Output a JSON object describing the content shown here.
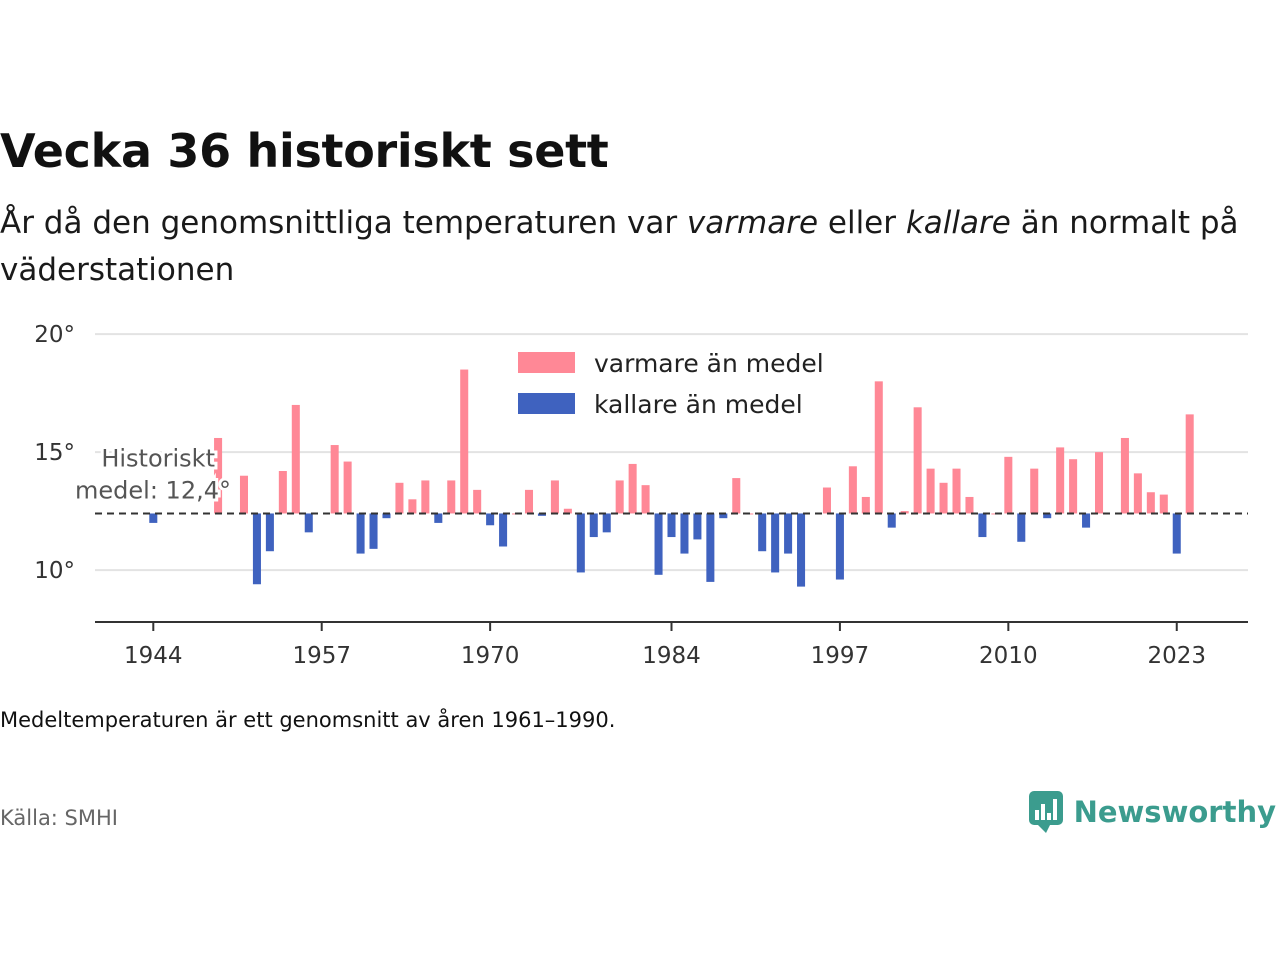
{
  "header": {
    "title": "Vecka 36 historiskt sett",
    "subtitle_parts": [
      "År då den genomsnittliga temperaturen var ",
      "varmare",
      " eller ",
      "kallare",
      " än normalt på väderstationen"
    ]
  },
  "footer": {
    "note": "Medeltemperaturen är ett genomsnitt av åren 1961–1990.",
    "source": "Källa: SMHI",
    "brand": "Newsworthy"
  },
  "chart_data": {
    "type": "bar",
    "baseline": 12.4,
    "baseline_label": [
      "Historiskt",
      "medel: 12,4°"
    ],
    "ylim": [
      7.8,
      20.6
    ],
    "yticks": [
      10,
      15,
      20
    ],
    "ytick_labels": [
      "10°",
      "15°",
      "20°"
    ],
    "xlim": [
      1939.5,
      2028.5
    ],
    "xticks": [
      1944,
      1957,
      1970,
      1984,
      1997,
      2010,
      2023
    ],
    "xtick_labels": [
      "1944",
      "1957",
      "1970",
      "1984",
      "1997",
      "2010",
      "2023"
    ],
    "grid": true,
    "legend": [
      {
        "key": "warm",
        "label": "varmare än medel",
        "color": "#ff8896"
      },
      {
        "key": "cold",
        "label": "kallare än medel",
        "color": "#3f62bf"
      }
    ],
    "colors": {
      "warm": "#ff8896",
      "cold": "#3f62bf",
      "baseline": "#333333"
    },
    "series": [
      {
        "x": 1944,
        "value": 12.0
      },
      {
        "x": 1949,
        "value": 15.6
      },
      {
        "x": 1951,
        "value": 14.0
      },
      {
        "x": 1952,
        "value": 9.4
      },
      {
        "x": 1953,
        "value": 10.8
      },
      {
        "x": 1954,
        "value": 14.2
      },
      {
        "x": 1955,
        "value": 17.0
      },
      {
        "x": 1956,
        "value": 11.6
      },
      {
        "x": 1958,
        "value": 15.3
      },
      {
        "x": 1959,
        "value": 14.6
      },
      {
        "x": 1960,
        "value": 10.7
      },
      {
        "x": 1961,
        "value": 10.9
      },
      {
        "x": 1962,
        "value": 12.2
      },
      {
        "x": 1963,
        "value": 13.7
      },
      {
        "x": 1964,
        "value": 13.0
      },
      {
        "x": 1965,
        "value": 13.8
      },
      {
        "x": 1966,
        "value": 12.0
      },
      {
        "x": 1967,
        "value": 13.8
      },
      {
        "x": 1968,
        "value": 18.5
      },
      {
        "x": 1969,
        "value": 13.4
      },
      {
        "x": 1970,
        "value": 11.9
      },
      {
        "x": 1971,
        "value": 11.0
      },
      {
        "x": 1972,
        "value": 12.4
      },
      {
        "x": 1973,
        "value": 13.4
      },
      {
        "x": 1974,
        "value": 12.3
      },
      {
        "x": 1975,
        "value": 13.8
      },
      {
        "x": 1976,
        "value": 12.6
      },
      {
        "x": 1977,
        "value": 9.9
      },
      {
        "x": 1978,
        "value": 11.4
      },
      {
        "x": 1979,
        "value": 11.6
      },
      {
        "x": 1980,
        "value": 13.8
      },
      {
        "x": 1981,
        "value": 14.5
      },
      {
        "x": 1982,
        "value": 13.6
      },
      {
        "x": 1983,
        "value": 9.8
      },
      {
        "x": 1984,
        "value": 11.4
      },
      {
        "x": 1985,
        "value": 10.7
      },
      {
        "x": 1986,
        "value": 11.3
      },
      {
        "x": 1987,
        "value": 9.5
      },
      {
        "x": 1988,
        "value": 12.2
      },
      {
        "x": 1989,
        "value": 13.9
      },
      {
        "x": 1990,
        "value": 12.4
      },
      {
        "x": 1991,
        "value": 10.8
      },
      {
        "x": 1992,
        "value": 9.9
      },
      {
        "x": 1993,
        "value": 10.7
      },
      {
        "x": 1994,
        "value": 9.3
      },
      {
        "x": 1996,
        "value": 13.5
      },
      {
        "x": 1997,
        "value": 9.6
      },
      {
        "x": 1998,
        "value": 14.4
      },
      {
        "x": 1999,
        "value": 13.1
      },
      {
        "x": 2000,
        "value": 18.0
      },
      {
        "x": 2001,
        "value": 11.8
      },
      {
        "x": 2002,
        "value": 12.5
      },
      {
        "x": 2003,
        "value": 16.9
      },
      {
        "x": 2004,
        "value": 14.3
      },
      {
        "x": 2005,
        "value": 13.7
      },
      {
        "x": 2006,
        "value": 14.3
      },
      {
        "x": 2007,
        "value": 13.1
      },
      {
        "x": 2008,
        "value": 11.4
      },
      {
        "x": 2009,
        "value": 12.4
      },
      {
        "x": 2010,
        "value": 14.8
      },
      {
        "x": 2011,
        "value": 11.2
      },
      {
        "x": 2012,
        "value": 14.3
      },
      {
        "x": 2013,
        "value": 12.2
      },
      {
        "x": 2014,
        "value": 15.2
      },
      {
        "x": 2015,
        "value": 14.7
      },
      {
        "x": 2016,
        "value": 11.8
      },
      {
        "x": 2017,
        "value": 15.0
      },
      {
        "x": 2019,
        "value": 15.6
      },
      {
        "x": 2020,
        "value": 14.1
      },
      {
        "x": 2021,
        "value": 13.3
      },
      {
        "x": 2022,
        "value": 13.2
      },
      {
        "x": 2023,
        "value": 10.7
      },
      {
        "x": 2024,
        "value": 16.6
      }
    ]
  }
}
